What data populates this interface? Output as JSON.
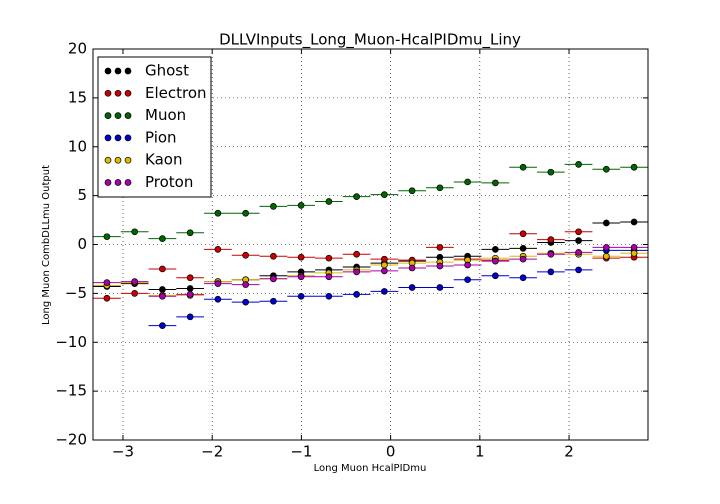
{
  "chart_data": {
    "type": "scatter",
    "title": "DLLVInputs_Long_Muon-HcalPIDmu_Liny",
    "x_label": "Long Muon HcalPIDmu",
    "y_label": "Long Muon CombDLLmu Output",
    "x": [
      -3.18,
      -2.869,
      -2.558,
      -2.247,
      -1.936,
      -1.625,
      -1.314,
      -1.003,
      -0.692,
      -0.381,
      -0.07,
      0.241,
      0.552,
      0.863,
      1.174,
      1.485,
      1.796,
      2.107,
      2.418,
      2.729
    ],
    "xerr": 0.1555,
    "series": [
      {
        "name": "Ghost",
        "color": "#000000",
        "values": [
          -4.3,
          -4.0,
          -4.6,
          -4.5,
          -3.8,
          -3.6,
          -3.2,
          -2.8,
          -2.6,
          -2.3,
          -1.9,
          -1.7,
          -1.3,
          -1.2,
          -0.5,
          -0.4,
          0.2,
          0.4,
          2.2,
          2.3
        ]
      },
      {
        "name": "Electron",
        "color": "#cc0000",
        "values": [
          -5.5,
          -5.0,
          -2.5,
          -3.4,
          -0.5,
          -1.1,
          -1.2,
          -1.3,
          -1.4,
          -1.0,
          -1.5,
          -1.6,
          -0.3,
          -1.5,
          -1.6,
          1.1,
          0.5,
          1.3,
          -1.4,
          -1.3
        ]
      },
      {
        "name": "Muon",
        "color": "#006600",
        "values": [
          0.8,
          1.3,
          0.6,
          1.2,
          3.2,
          3.2,
          3.9,
          4.0,
          4.4,
          4.9,
          5.1,
          5.5,
          5.8,
          6.4,
          6.3,
          7.9,
          7.4,
          8.2,
          7.7,
          7.9
        ]
      },
      {
        "name": "Pion",
        "color": "#0000cc",
        "values": [
          null,
          null,
          -8.3,
          -7.4,
          -5.6,
          -5.9,
          -5.8,
          -5.3,
          -5.3,
          -5.1,
          -4.8,
          -4.4,
          -4.4,
          -3.6,
          -3.2,
          -3.4,
          -2.8,
          -2.6,
          -0.6,
          -0.6
        ]
      },
      {
        "name": "Kaon",
        "color": "#ddbb00",
        "values": [
          -4.2,
          -3.9,
          -5.2,
          -5.2,
          -3.8,
          -3.6,
          -3.5,
          -3.2,
          -2.9,
          -2.6,
          -2.1,
          -1.9,
          -1.8,
          -1.6,
          -1.4,
          -1.2,
          -0.9,
          -1.0,
          -1.2,
          -0.9
        ]
      },
      {
        "name": "Proton",
        "color": "#aa00aa",
        "values": [
          -3.9,
          -3.8,
          -5.3,
          -5.1,
          -4.0,
          -4.1,
          -3.5,
          -3.3,
          -3.3,
          -2.8,
          -2.7,
          -2.4,
          -2.2,
          -2.1,
          -1.7,
          -1.5,
          -1.0,
          -0.8,
          -0.3,
          -0.3
        ]
      }
    ],
    "xlim": [
      -3.336,
      2.885
    ],
    "ylim": [
      -20,
      20
    ],
    "xticks": [
      {
        "value": -3,
        "label": "−3"
      },
      {
        "value": -2,
        "label": "−2"
      },
      {
        "value": -1,
        "label": "−1"
      },
      0,
      1,
      2
    ],
    "yticks": [
      {
        "value": -20,
        "label": "−20"
      },
      {
        "value": -15,
        "label": "−15"
      },
      {
        "value": -10,
        "label": "−10"
      },
      {
        "value": -5,
        "label": "−5"
      },
      0,
      5,
      10,
      15,
      20
    ],
    "grid": true,
    "legend": "upper-left"
  }
}
